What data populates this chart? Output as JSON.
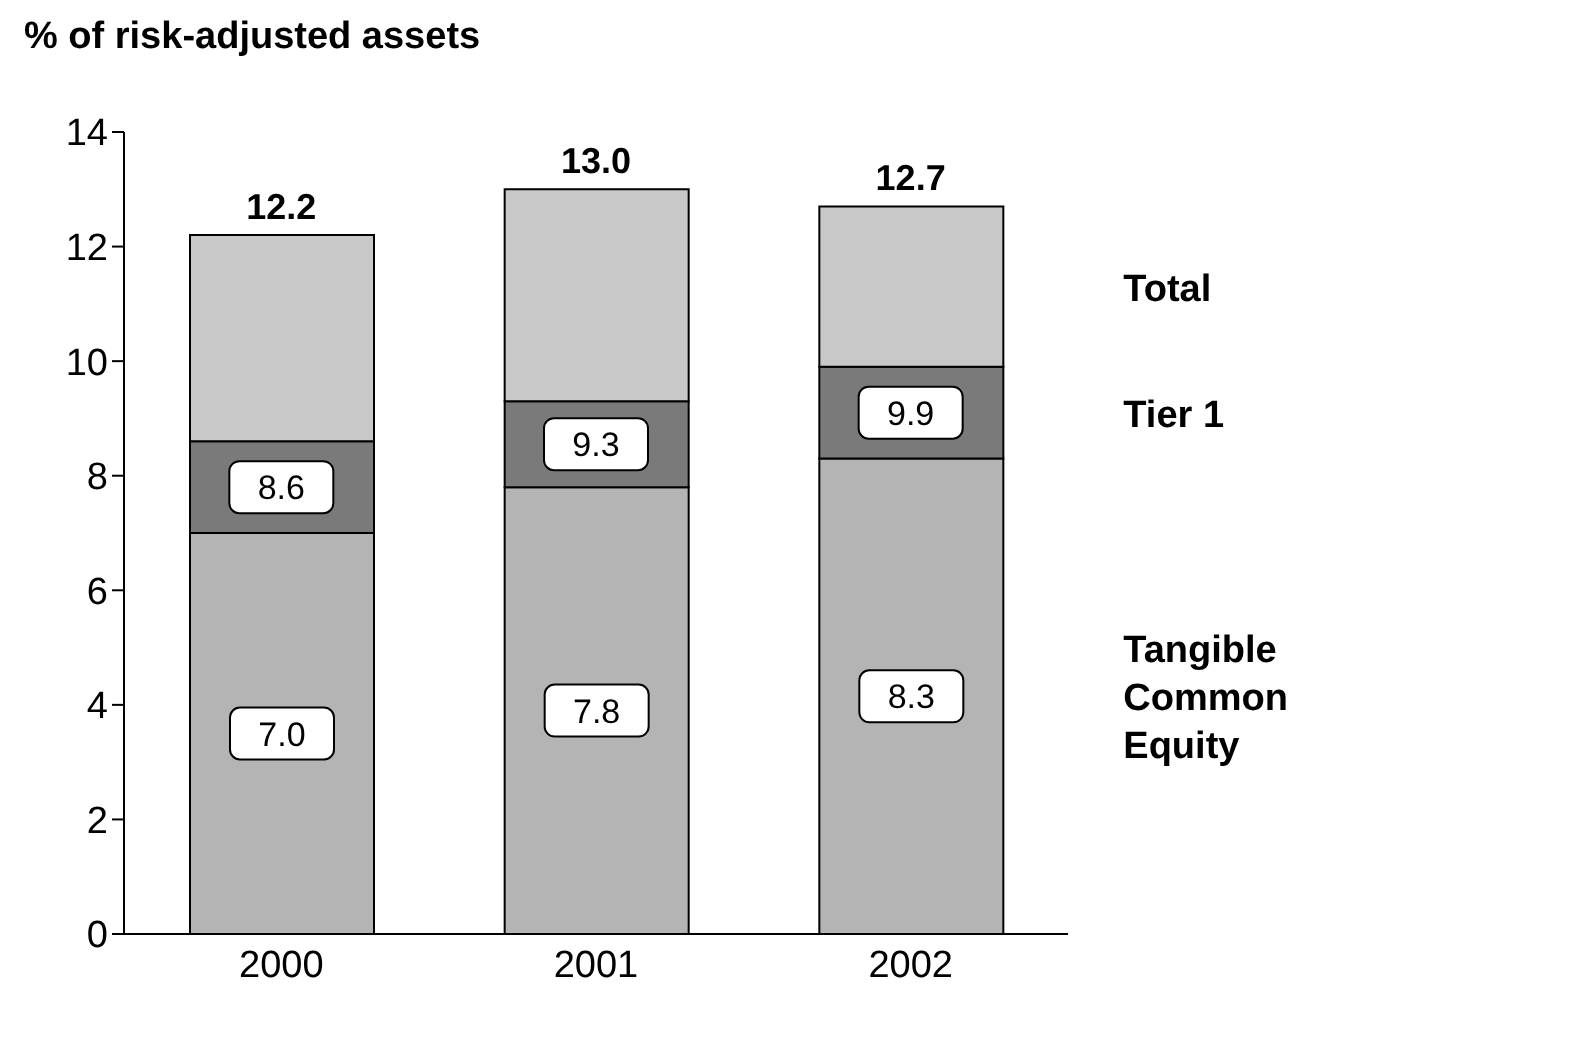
{
  "chart_data": {
    "type": "bar",
    "ylabel": "% of risk-adjusted assets",
    "categories": [
      "2000",
      "2001",
      "2002"
    ],
    "stacked": true,
    "ylim": [
      0,
      14
    ],
    "yticks": [
      0,
      2,
      4,
      6,
      8,
      10,
      12,
      14
    ],
    "series": [
      {
        "name": "Tangible Common Equity",
        "color": "#b4b4b4",
        "values": [
          7.0,
          7.8,
          8.3
        ],
        "value_labels": [
          "7.0",
          "7.8",
          "8.3"
        ]
      },
      {
        "name": "Tier 1",
        "color": "#7a7a7a",
        "values": [
          1.6,
          1.5,
          1.6
        ]
      },
      {
        "name": "Total",
        "color": "#c8c8c8",
        "values": [
          3.6,
          3.7,
          2.8
        ]
      }
    ],
    "annotations": [
      {
        "text": "8.6",
        "x": "2000",
        "y": 8.6
      },
      {
        "text": "9.3",
        "x": "2001",
        "y": 9.3
      },
      {
        "text": "9.9",
        "x": "2002",
        "y": 9.9
      },
      {
        "text": "12.2",
        "x": "2000",
        "y": 12.2
      },
      {
        "text": "13.0",
        "x": "2001",
        "y": 13.0
      },
      {
        "text": "12.7",
        "x": "2002",
        "y": 12.7
      }
    ]
  }
}
